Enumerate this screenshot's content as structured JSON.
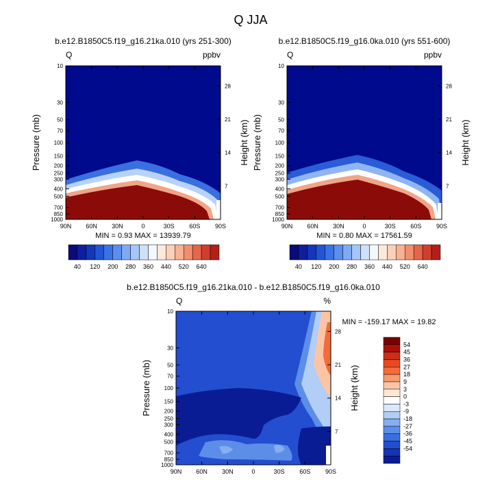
{
  "title": "Q JJA",
  "chart_data": [
    {
      "type": "heatmap",
      "title": "b.e12.B1850C5.f19_g16.21ka.010 (yrs 251-300)",
      "left_label": "Q",
      "right_label": "ppbv",
      "ylabel": "Pressure (mb)",
      "y2label": "Height (km)",
      "x_ticks": [
        "90N",
        "60N",
        "30N",
        "0",
        "30S",
        "60S",
        "90S"
      ],
      "y_ticks": [
        "10",
        "30",
        "50",
        "70",
        "100",
        "150",
        "200",
        "250",
        "300",
        "400",
        "500",
        "700",
        "850",
        "1000"
      ],
      "y2_ticks": [
        "28",
        "21",
        "14",
        "7"
      ],
      "stats": "MIN =   0.93   MAX = 13939.79",
      "colorbar_labels": [
        "40",
        "120",
        "200",
        "280",
        "360",
        "440",
        "520",
        "640"
      ],
      "min": 0.93,
      "max": 13939.79
    },
    {
      "type": "heatmap",
      "title": "b.e12.B1850C5.f19_g16.0ka.010 (yrs 551-600)",
      "left_label": "Q",
      "right_label": "ppbv",
      "ylabel": "Pressure (mb)",
      "y2label": "Height (km)",
      "x_ticks": [
        "90N",
        "60N",
        "30N",
        "0",
        "30S",
        "60S",
        "90S"
      ],
      "y_ticks": [
        "10",
        "30",
        "50",
        "70",
        "100",
        "150",
        "200",
        "250",
        "300",
        "400",
        "500",
        "700",
        "850",
        "1000"
      ],
      "y2_ticks": [
        "28",
        "21",
        "14",
        "7"
      ],
      "stats": "MIN =   0.80   MAX = 17561.59",
      "colorbar_labels": [
        "40",
        "120",
        "200",
        "280",
        "360",
        "440",
        "520",
        "640"
      ],
      "min": 0.8,
      "max": 17561.59
    },
    {
      "type": "heatmap",
      "title": "b.e12.B1850C5.f19_g16.21ka.010 - b.e12.B1850C5.f19_g16.0ka.010",
      "left_label": "Q",
      "right_label": "%",
      "ylabel": "Pressure (mb)",
      "y2label": "Height (km)",
      "x_ticks": [
        "90N",
        "60N",
        "30N",
        "0",
        "30S",
        "60S",
        "90S"
      ],
      "y_ticks": [
        "10",
        "30",
        "50",
        "70",
        "100",
        "150",
        "200",
        "250",
        "300",
        "400",
        "500",
        "700",
        "850",
        "1000"
      ],
      "y2_ticks": [
        "28",
        "21",
        "14",
        "7"
      ],
      "stats": "MIN = -159.17   MAX =  19.82",
      "colorbar_labels": [
        "54",
        "45",
        "36",
        "27",
        "18",
        "9",
        "3",
        "0",
        "-3",
        "-9",
        "-18",
        "-27",
        "-36",
        "-45",
        "-54"
      ],
      "min": -159.17,
      "max": 19.82
    }
  ],
  "colors": {
    "abs_scale": [
      "#0a0a7a",
      "#0d1f9c",
      "#1436bd",
      "#2255d6",
      "#3a72e6",
      "#5b8eef",
      "#7eaaf5",
      "#a5c6fa",
      "#cde0fc",
      "#f3f7fe",
      "#fde9dc",
      "#fbd0b8",
      "#f8b193",
      "#f18e6d",
      "#e4664b",
      "#d03e2e",
      "#b3201a",
      "#8b0b09",
      "#7a0000"
    ],
    "diff_scale": [
      "#7a0000",
      "#a80f0b",
      "#cc2d16",
      "#e8491f",
      "#f36c3c",
      "#f79a6c",
      "#fbc5a5",
      "#fde6d6",
      "#ffffff",
      "#dbe8fb",
      "#b2cdf6",
      "#86aef0",
      "#5c8ee8",
      "#3a6ddf",
      "#234ed0",
      "#1434b5",
      "#0a1c94"
    ]
  }
}
